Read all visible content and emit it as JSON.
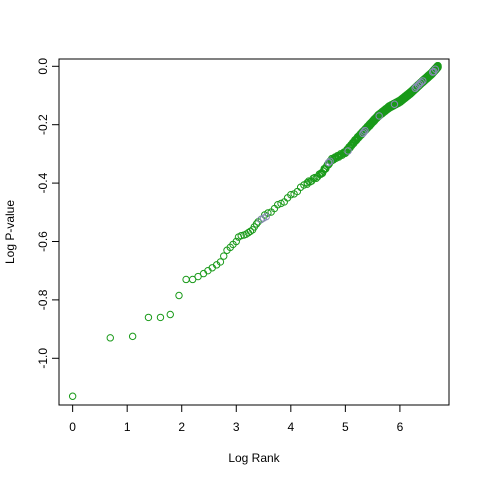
{
  "chart_data": {
    "type": "scatter",
    "title": "",
    "xlabel": "Log Rank",
    "ylabel": "Log P-value",
    "xlim": [
      -0.25,
      6.9
    ],
    "ylim": [
      -1.16,
      0.025
    ],
    "x_ticks": [
      0,
      1,
      2,
      3,
      4,
      5,
      6
    ],
    "y_ticks": [
      -1.0,
      -0.8,
      -0.6,
      -0.4,
      -0.2,
      0.0
    ],
    "y_tick_labels": [
      "-1.0",
      "-0.8",
      "-0.6",
      "-0.4",
      "-0.2",
      "0.0"
    ],
    "grid": false,
    "legend": "none",
    "colors": {
      "primary": "#1a9a1a",
      "secondary": "#8a8ab8",
      "frame": "#000000"
    },
    "series": [
      {
        "color": "#1a9a1a",
        "points": [
          [
            0,
            -1.13
          ],
          [
            0.69,
            -0.93
          ],
          [
            1.1,
            -0.925
          ],
          [
            1.39,
            -0.86
          ],
          [
            1.61,
            -0.86
          ],
          [
            1.79,
            -0.85
          ],
          [
            1.95,
            -0.785
          ],
          [
            2.08,
            -0.73
          ],
          [
            2.2,
            -0.73
          ],
          [
            2.3,
            -0.72
          ],
          [
            2.4,
            -0.71
          ],
          [
            2.48,
            -0.7
          ],
          [
            2.56,
            -0.69
          ],
          [
            2.64,
            -0.68
          ],
          [
            2.71,
            -0.67
          ],
          [
            2.77,
            -0.65
          ],
          [
            2.83,
            -0.63
          ],
          [
            2.89,
            -0.62
          ],
          [
            2.94,
            -0.61
          ],
          [
            3.0,
            -0.6
          ],
          [
            3.04,
            -0.585
          ],
          [
            3.09,
            -0.58
          ],
          [
            3.14,
            -0.578
          ],
          [
            3.18,
            -0.575
          ],
          [
            3.22,
            -0.57
          ],
          [
            3.26,
            -0.565
          ],
          [
            3.3,
            -0.56
          ],
          [
            3.33,
            -0.55
          ],
          [
            3.37,
            -0.54
          ]
        ],
        "segments": [
          [
            3.4,
            -0.53,
            4.3,
            -0.4,
            16
          ],
          [
            4.3,
            -0.4,
            4.55,
            -0.37,
            10
          ],
          [
            4.55,
            -0.37,
            4.75,
            -0.32,
            14
          ],
          [
            4.75,
            -0.32,
            5.0,
            -0.295,
            18
          ],
          [
            5.0,
            -0.295,
            5.2,
            -0.25,
            22
          ],
          [
            5.2,
            -0.25,
            5.4,
            -0.21,
            26
          ],
          [
            5.4,
            -0.21,
            5.6,
            -0.17,
            34
          ],
          [
            5.6,
            -0.17,
            5.8,
            -0.14,
            44
          ],
          [
            5.8,
            -0.14,
            6.0,
            -0.12,
            56
          ],
          [
            6.0,
            -0.12,
            6.2,
            -0.09,
            72
          ],
          [
            6.2,
            -0.09,
            6.4,
            -0.055,
            96
          ],
          [
            6.4,
            -0.055,
            6.58,
            -0.025,
            120
          ],
          [
            6.58,
            -0.025,
            6.7,
            0.0,
            100
          ]
        ]
      },
      {
        "color": "#8a8ab8",
        "points": [
          [
            3.45,
            -0.525
          ],
          [
            3.5,
            -0.52
          ],
          [
            3.55,
            -0.515
          ],
          [
            4.69,
            -0.33
          ],
          [
            4.72,
            -0.325
          ],
          [
            5.05,
            -0.29
          ],
          [
            5.32,
            -0.23
          ],
          [
            5.34,
            -0.225
          ],
          [
            5.36,
            -0.22
          ],
          [
            5.62,
            -0.17
          ],
          [
            5.9,
            -0.13
          ],
          [
            6.28,
            -0.075
          ],
          [
            6.3,
            -0.07
          ],
          [
            6.34,
            -0.065
          ],
          [
            6.36,
            -0.06
          ],
          [
            6.39,
            -0.055
          ],
          [
            6.42,
            -0.05
          ],
          [
            6.6,
            -0.02
          ],
          [
            6.62,
            -0.018
          ],
          [
            6.65,
            -0.01
          ]
        ]
      }
    ]
  }
}
